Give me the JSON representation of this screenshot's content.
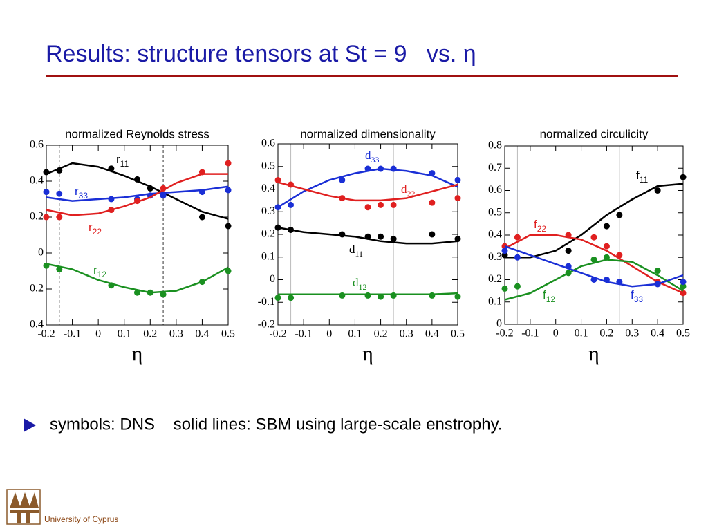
{
  "title": "Results: structure tensors at St = 9   vs. η",
  "bullet": "symbols: DNS    solid lines: SBM using large-scale enstrophy.",
  "footer": "University of Cyprus",
  "chart_data": [
    {
      "type": "scatter",
      "title": "normalized Reynolds stress",
      "xlabel": "η",
      "xlim": [
        -0.2,
        0.5
      ],
      "xticks": [
        -0.2,
        -0.1,
        0,
        0.1,
        0.2,
        0.3,
        0.4,
        0.5
      ],
      "ylim": [
        -0.4,
        0.6
      ],
      "yticks": [
        {
          "value": -0.4,
          "label": "0.4"
        },
        {
          "value": -0.2,
          "label": "0.2"
        },
        0,
        0.2,
        0.4,
        0.6
      ],
      "vlines": [
        -0.15,
        0.25
      ],
      "vline_style": "dashed",
      "line_x": [
        -0.2,
        -0.1,
        0,
        0.1,
        0.2,
        0.3,
        0.4,
        0.5
      ],
      "series": [
        {
          "name": "r11",
          "color": "#000000",
          "x": [
            -0.2,
            -0.15,
            0.05,
            0.15,
            0.2,
            0.4,
            0.5
          ],
          "values": [
            0.45,
            0.46,
            0.47,
            0.41,
            0.36,
            0.2,
            0.15
          ],
          "line_values": [
            0.44,
            0.5,
            0.48,
            0.43,
            0.37,
            0.3,
            0.23,
            0.19
          ]
        },
        {
          "name": "r33",
          "color": "#1a2fd6",
          "x": [
            -0.2,
            -0.15,
            0.05,
            0.15,
            0.2,
            0.25,
            0.4,
            0.5
          ],
          "values": [
            0.34,
            0.33,
            0.3,
            0.3,
            0.32,
            0.32,
            0.34,
            0.35
          ],
          "line_values": [
            0.31,
            0.29,
            0.3,
            0.31,
            0.33,
            0.34,
            0.35,
            0.37
          ]
        },
        {
          "name": "r22",
          "color": "#e02020",
          "x": [
            -0.2,
            -0.15,
            0.05,
            0.15,
            0.25,
            0.4,
            0.5
          ],
          "values": [
            0.2,
            0.2,
            0.24,
            0.29,
            0.36,
            0.45,
            0.5
          ],
          "line_values": [
            0.24,
            0.21,
            0.22,
            0.26,
            0.31,
            0.39,
            0.44,
            0.44
          ]
        },
        {
          "name": "r12",
          "color": "#1a9020",
          "x": [
            -0.2,
            -0.15,
            0.05,
            0.15,
            0.2,
            0.25,
            0.4,
            0.5
          ],
          "values": [
            -0.07,
            -0.09,
            -0.18,
            -0.22,
            -0.22,
            -0.23,
            -0.16,
            -0.1
          ],
          "line_values": [
            -0.06,
            -0.09,
            -0.15,
            -0.19,
            -0.22,
            -0.21,
            -0.16,
            -0.08
          ]
        }
      ]
    },
    {
      "type": "scatter",
      "title": "normalized dimensionality",
      "xlabel": "η",
      "xlim": [
        -0.2,
        0.5
      ],
      "xticks": [
        -0.2,
        -0.1,
        0,
        0.1,
        0.2,
        0.3,
        0.4,
        0.5
      ],
      "ylim": [
        -0.2,
        0.6
      ],
      "yticks": [
        -0.2,
        -0.1,
        0,
        0.1,
        0.2,
        0.3,
        0.4,
        0.5,
        0.6
      ],
      "vlines": [
        -0.15,
        0.25
      ],
      "vline_style": "solid",
      "line_x": [
        -0.2,
        -0.1,
        0,
        0.1,
        0.2,
        0.3,
        0.4,
        0.5
      ],
      "series": [
        {
          "name": "d33",
          "color": "#1a2fd6",
          "x": [
            -0.2,
            -0.15,
            0.05,
            0.15,
            0.2,
            0.25,
            0.4,
            0.5
          ],
          "values": [
            0.32,
            0.33,
            0.44,
            0.49,
            0.49,
            0.49,
            0.47,
            0.44
          ],
          "line_values": [
            0.32,
            0.39,
            0.44,
            0.47,
            0.49,
            0.48,
            0.46,
            0.41
          ]
        },
        {
          "name": "d22",
          "color": "#e02020",
          "x": [
            -0.2,
            -0.15,
            0.05,
            0.15,
            0.2,
            0.25,
            0.4,
            0.5
          ],
          "values": [
            0.44,
            0.42,
            0.36,
            0.32,
            0.33,
            0.33,
            0.34,
            0.36
          ],
          "line_values": [
            0.43,
            0.4,
            0.37,
            0.35,
            0.35,
            0.36,
            0.39,
            0.42
          ]
        },
        {
          "name": "d11",
          "color": "#000000",
          "x": [
            -0.2,
            -0.15,
            0.05,
            0.15,
            0.2,
            0.25,
            0.4,
            0.5
          ],
          "values": [
            0.23,
            0.22,
            0.2,
            0.19,
            0.19,
            0.18,
            0.2,
            0.18
          ],
          "line_values": [
            0.23,
            0.21,
            0.2,
            0.19,
            0.17,
            0.16,
            0.16,
            0.17
          ]
        },
        {
          "name": "d12",
          "color": "#1a9020",
          "x": [
            -0.2,
            -0.15,
            0.05,
            0.15,
            0.2,
            0.25,
            0.4,
            0.5
          ],
          "values": [
            -0.08,
            -0.08,
            -0.07,
            -0.07,
            -0.075,
            -0.07,
            -0.07,
            -0.075
          ],
          "line_values": [
            -0.065,
            -0.065,
            -0.065,
            -0.065,
            -0.065,
            -0.065,
            -0.065,
            -0.06
          ]
        }
      ]
    },
    {
      "type": "scatter",
      "title": "normalized circulicity",
      "xlabel": "η",
      "xlim": [
        -0.2,
        0.5
      ],
      "xticks": [
        -0.2,
        -0.1,
        0,
        0.1,
        0.2,
        0.3,
        0.4,
        0.5
      ],
      "ylim": [
        0,
        0.8
      ],
      "yticks": [
        0,
        0.1,
        0.2,
        0.3,
        0.4,
        0.5,
        0.6,
        0.7,
        0.8
      ],
      "vlines": [
        -0.15,
        0.25
      ],
      "vline_style": "solid",
      "line_x": [
        -0.2,
        -0.1,
        0,
        0.1,
        0.2,
        0.3,
        0.4,
        0.5
      ],
      "series": [
        {
          "name": "f11",
          "color": "#000000",
          "x": [
            -0.2,
            0.05,
            0.2,
            0.25,
            0.4,
            0.5
          ],
          "values": [
            0.31,
            0.33,
            0.44,
            0.49,
            0.6,
            0.66
          ],
          "line_values": [
            0.3,
            0.3,
            0.33,
            0.4,
            0.49,
            0.56,
            0.62,
            0.63
          ]
        },
        {
          "name": "f22",
          "color": "#e02020",
          "x": [
            -0.2,
            -0.15,
            0.05,
            0.15,
            0.2,
            0.25,
            0.4,
            0.5
          ],
          "values": [
            0.35,
            0.39,
            0.4,
            0.39,
            0.35,
            0.31,
            0.19,
            0.14
          ],
          "line_values": [
            0.34,
            0.4,
            0.4,
            0.38,
            0.33,
            0.26,
            0.19,
            0.14
          ]
        },
        {
          "name": "f12",
          "color": "#1a9020",
          "x": [
            -0.2,
            -0.15,
            0.05,
            0.15,
            0.2,
            0.4,
            0.5
          ],
          "values": [
            0.16,
            0.17,
            0.23,
            0.29,
            0.3,
            0.24,
            0.17
          ],
          "line_values": [
            0.11,
            0.14,
            0.2,
            0.26,
            0.29,
            0.28,
            0.22,
            0.15
          ]
        },
        {
          "name": "f33",
          "color": "#1a2fd6",
          "x": [
            -0.2,
            -0.15,
            0.05,
            0.15,
            0.2,
            0.25,
            0.4,
            0.5
          ],
          "values": [
            0.33,
            0.3,
            0.26,
            0.2,
            0.2,
            0.19,
            0.18,
            0.19
          ],
          "line_values": [
            0.35,
            0.31,
            0.27,
            0.23,
            0.19,
            0.17,
            0.18,
            0.22
          ]
        }
      ]
    }
  ]
}
